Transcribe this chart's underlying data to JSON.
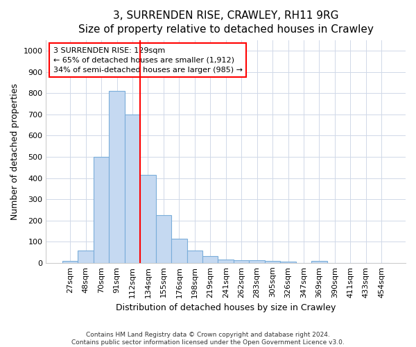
{
  "title": "3, SURRENDEN RISE, CRAWLEY, RH11 9RG",
  "subtitle": "Size of property relative to detached houses in Crawley",
  "xlabel": "Distribution of detached houses by size in Crawley",
  "ylabel": "Number of detached properties",
  "bar_labels": [
    "27sqm",
    "48sqm",
    "70sqm",
    "91sqm",
    "112sqm",
    "134sqm",
    "155sqm",
    "176sqm",
    "198sqm",
    "219sqm",
    "241sqm",
    "262sqm",
    "283sqm",
    "305sqm",
    "326sqm",
    "347sqm",
    "369sqm",
    "390sqm",
    "411sqm",
    "433sqm",
    "454sqm"
  ],
  "bar_values": [
    8,
    57,
    500,
    810,
    700,
    415,
    225,
    115,
    57,
    33,
    17,
    14,
    12,
    8,
    6,
    0,
    10,
    0,
    0,
    0,
    0
  ],
  "bar_color": "#c5d9f1",
  "bar_edge_color": "#7aadda",
  "vline_position": 4.5,
  "vline_color": "red",
  "annotation_text": "3 SURRENDEN RISE: 129sqm\n← 65% of detached houses are smaller (1,912)\n34% of semi-detached houses are larger (985) →",
  "annotation_box_color": "white",
  "annotation_box_edge": "red",
  "ylim": [
    0,
    1050
  ],
  "yticks": [
    0,
    100,
    200,
    300,
    400,
    500,
    600,
    700,
    800,
    900,
    1000
  ],
  "footer_line1": "Contains HM Land Registry data © Crown copyright and database right 2024.",
  "footer_line2": "Contains public sector information licensed under the Open Government Licence v3.0.",
  "bg_color": "#ffffff",
  "plot_bg_color": "#ffffff",
  "grid_color": "#d0d8e8",
  "title_fontsize": 11,
  "subtitle_fontsize": 10,
  "ylabel_fontsize": 9,
  "xlabel_fontsize": 9,
  "tick_fontsize": 8,
  "annotation_fontsize": 8
}
